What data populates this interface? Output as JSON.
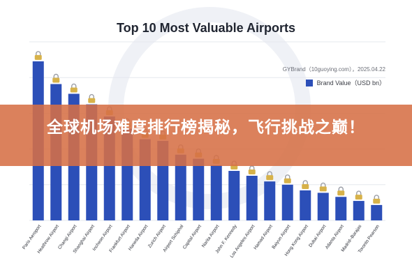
{
  "chart_data": {
    "type": "bar",
    "title": "Top 10 Most Valuable Airports",
    "source": "GYBrand（10guoying.com），2025.04.22",
    "categories": [
      "Paris Aeroport",
      "Heathrow Airport",
      "Changi Airport",
      "Shanghai Airport",
      "Incheon Airport",
      "Frankfurt Airport",
      "Haneda Airport",
      "Zurich Airport",
      "Airport Schiphol",
      "Capital Airport",
      "Narita Airport",
      "John F. Kennedy",
      "Los Angeles Airport",
      "Hamad Airport",
      "Baiyun Airport",
      "Hong Kong Airport",
      "Dubai Airport",
      "Atlanta Airport",
      "Madrid–Barajas",
      "Toronto Pearson"
    ],
    "series": [
      {
        "name": "Brand Value（USD bn）",
        "values": [
          19.6,
          16.8,
          15.6,
          14.3,
          12.8,
          11.3,
          10.0,
          9.8,
          8.1,
          7.6,
          6.8,
          6.1,
          5.5,
          4.8,
          4.4,
          3.7,
          3.4,
          2.9,
          2.4,
          1.9
        ],
        "color": "#2c4fb8"
      }
    ],
    "ylim": [
      0,
      22
    ],
    "grid": true,
    "legend_position": "top-right"
  },
  "banner": {
    "text": "全球机场难度排行榜揭秘，飞行挑战之巅！"
  },
  "colors": {
    "bar": "#2c4fb8",
    "banner": "#d67046",
    "lock": "#d7b24a"
  },
  "icons": {
    "bar_marker": "lock-icon"
  }
}
